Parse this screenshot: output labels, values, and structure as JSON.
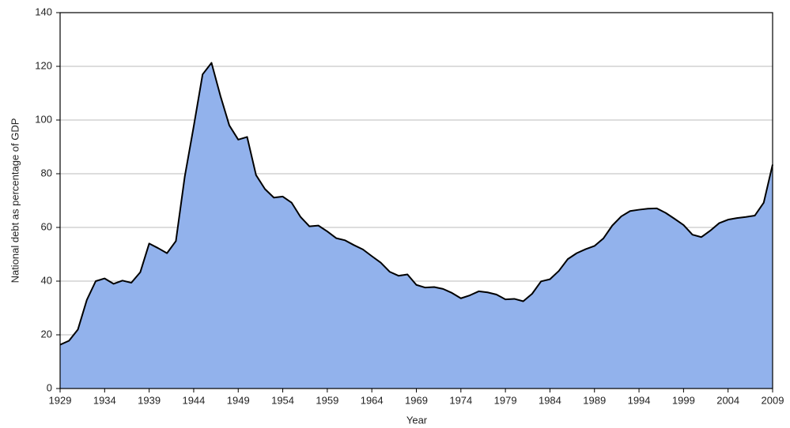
{
  "chart_data": {
    "type": "area",
    "xlabel": "Year",
    "ylabel": "National debt as percentage of GDP",
    "x": [
      1929,
      1930,
      1931,
      1932,
      1933,
      1934,
      1935,
      1936,
      1937,
      1938,
      1939,
      1940,
      1941,
      1942,
      1943,
      1944,
      1945,
      1946,
      1947,
      1948,
      1949,
      1950,
      1951,
      1952,
      1953,
      1954,
      1955,
      1956,
      1957,
      1958,
      1959,
      1960,
      1961,
      1962,
      1963,
      1964,
      1965,
      1966,
      1967,
      1968,
      1969,
      1970,
      1971,
      1972,
      1973,
      1974,
      1975,
      1976,
      1977,
      1978,
      1979,
      1980,
      1981,
      1982,
      1983,
      1984,
      1985,
      1986,
      1987,
      1988,
      1989,
      1990,
      1991,
      1992,
      1993,
      1994,
      1995,
      1996,
      1997,
      1998,
      1999,
      2000,
      2001,
      2002,
      2003,
      2004,
      2005,
      2006,
      2007,
      2008,
      2009
    ],
    "values": [
      16.3,
      17.8,
      22,
      33,
      40,
      41,
      39,
      40.2,
      39.4,
      43.3,
      54,
      52.3,
      50.4,
      54.9,
      79,
      97.6,
      117,
      121.3,
      109,
      98,
      92.7,
      93.7,
      79.5,
      74.3,
      71.1,
      71.5,
      69.2,
      63.9,
      60.4,
      60.7,
      58.5,
      56,
      55.2,
      53.4,
      51.8,
      49.3,
      46.9,
      43.5,
      42,
      42.5,
      38.6,
      37.6,
      37.8,
      37.1,
      35.6,
      33.6,
      34.7,
      36.2,
      35.8,
      35,
      33.2,
      33.4,
      32.5,
      35.3,
      39.9,
      40.7,
      43.8,
      48.2,
      50.4,
      51.9,
      53.1,
      55.9,
      60.7,
      64.1,
      66.1,
      66.6,
      67,
      67.1,
      65.4,
      63.2,
      60.9,
      57.3,
      56.4,
      58.8,
      61.6,
      62.9,
      63.5,
      63.9,
      64.4,
      69.2,
      83.4
    ],
    "color": "#92b2ec",
    "xlim": [
      1929,
      2009
    ],
    "xticks": [
      1929,
      1934,
      1939,
      1944,
      1949,
      1954,
      1959,
      1964,
      1969,
      1974,
      1979,
      1984,
      1989,
      1994,
      1999,
      2004,
      2009
    ],
    "ylim": [
      0,
      140
    ],
    "yticks": [
      0,
      20,
      40,
      60,
      80,
      100,
      120,
      140
    ],
    "grid": true
  }
}
